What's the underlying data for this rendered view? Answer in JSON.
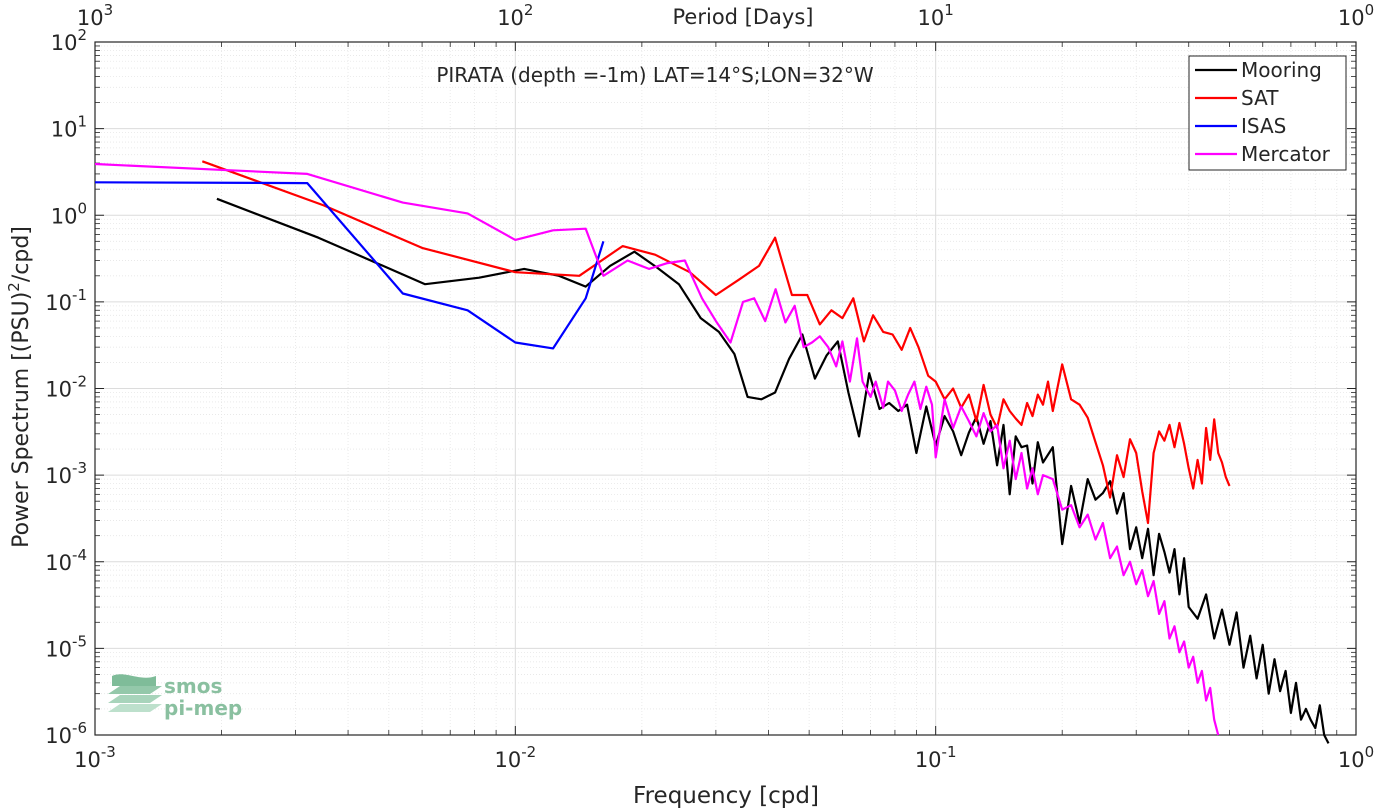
{
  "chart_data": {
    "type": "line",
    "title": "PIRATA (depth =-1m) LAT=14°S;LON=32°W",
    "xlabel": "Frequency [cpd]",
    "ylabel_main": "Power Spectrum [(PSU)",
    "ylabel_sup": "2",
    "ylabel_tail": "/cpd]",
    "top_axis_label": "Period [Days]",
    "x_scale": "log",
    "y_scale": "log",
    "xlim": [
      0.001,
      1
    ],
    "ylim": [
      1e-06,
      100
    ],
    "grid": true,
    "legend_position": "top-right",
    "x_ticks": [
      {
        "value": 0.001,
        "base": "10",
        "exp": "-3"
      },
      {
        "value": 0.01,
        "base": "10",
        "exp": "-2"
      },
      {
        "value": 0.1,
        "base": "10",
        "exp": "-1"
      },
      {
        "value": 1,
        "base": "10",
        "exp": "0"
      }
    ],
    "y_ticks": [
      {
        "value": 100,
        "base": "10",
        "exp": "2"
      },
      {
        "value": 10,
        "base": "10",
        "exp": "1"
      },
      {
        "value": 1,
        "base": "10",
        "exp": "0"
      },
      {
        "value": 0.1,
        "base": "10",
        "exp": "-1"
      },
      {
        "value": 0.01,
        "base": "10",
        "exp": "-2"
      },
      {
        "value": 0.001,
        "base": "10",
        "exp": "-3"
      },
      {
        "value": 0.0001,
        "base": "10",
        "exp": "-4"
      },
      {
        "value": 1e-05,
        "base": "10",
        "exp": "-5"
      },
      {
        "value": 1e-06,
        "base": "10",
        "exp": "-6"
      }
    ],
    "top_ticks": [
      {
        "value": 0.001,
        "base": "10",
        "exp": "3"
      },
      {
        "value": 0.01,
        "base": "10",
        "exp": "2"
      },
      {
        "value": 0.1,
        "base": "10",
        "exp": "1"
      },
      {
        "value": 1,
        "base": "10",
        "exp": "0"
      }
    ],
    "series": [
      {
        "name": "Mooring",
        "color": "#000000",
        "x": [
          0.00195,
          0.0034,
          0.0061,
          0.0082,
          0.0105,
          0.0127,
          0.0147,
          0.0168,
          0.0192,
          0.0217,
          0.0245,
          0.0276,
          0.0305,
          0.0332,
          0.0357,
          0.0385,
          0.0415,
          0.0448,
          0.0482,
          0.0516,
          0.055,
          0.0585,
          0.062,
          0.0657,
          0.0695,
          0.0735,
          0.0775,
          0.0815,
          0.0855,
          0.09,
          0.095,
          0.1,
          0.105,
          0.11,
          0.115,
          0.12,
          0.125,
          0.13,
          0.135,
          0.14,
          0.145,
          0.15,
          0.155,
          0.16,
          0.165,
          0.17,
          0.175,
          0.18,
          0.19,
          0.2,
          0.21,
          0.22,
          0.23,
          0.24,
          0.25,
          0.26,
          0.27,
          0.28,
          0.29,
          0.3,
          0.31,
          0.32,
          0.33,
          0.34,
          0.35,
          0.36,
          0.37,
          0.38,
          0.39,
          0.4,
          0.42,
          0.44,
          0.46,
          0.48,
          0.5,
          0.52,
          0.54,
          0.56,
          0.58,
          0.6,
          0.62,
          0.64,
          0.66,
          0.68,
          0.7,
          0.72,
          0.74,
          0.76,
          0.78,
          0.8,
          0.82,
          0.84,
          0.86
        ],
        "y": [
          1.55,
          0.55,
          0.16,
          0.19,
          0.24,
          0.2,
          0.15,
          0.26,
          0.38,
          0.25,
          0.16,
          0.065,
          0.045,
          0.025,
          0.008,
          0.0075,
          0.009,
          0.022,
          0.042,
          0.013,
          0.024,
          0.035,
          0.009,
          0.0028,
          0.015,
          0.0058,
          0.0068,
          0.0055,
          0.0065,
          0.0018,
          0.0062,
          0.0022,
          0.0048,
          0.0032,
          0.0017,
          0.0031,
          0.0047,
          0.0023,
          0.0042,
          0.0013,
          0.0038,
          0.0006,
          0.0028,
          0.0021,
          0.0022,
          0.0008,
          0.0024,
          0.0014,
          0.0021,
          0.00016,
          0.00075,
          0.00028,
          0.0009,
          0.00052,
          0.00062,
          0.00085,
          0.00036,
          0.00062,
          0.00014,
          0.00025,
          0.00011,
          0.00024,
          7e-05,
          0.00021,
          0.00013,
          7.5e-05,
          0.00014,
          4.2e-05,
          0.00011,
          3e-05,
          2.2e-05,
          4.2e-05,
          1.3e-05,
          2.8e-05,
          1.1e-05,
          2.6e-05,
          6e-06,
          1.4e-05,
          4.5e-06,
          1.1e-05,
          3e-06,
          7.5e-06,
          3.2e-06,
          5.5e-06,
          1.8e-06,
          4e-06,
          1.5e-06,
          2e-06,
          1.5e-06,
          1.2e-06,
          2.2e-06,
          1e-06,
          8e-07
        ]
      },
      {
        "name": "SAT",
        "color": "#ff0000",
        "x": [
          0.0018,
          0.0035,
          0.006,
          0.01,
          0.0142,
          0.018,
          0.0215,
          0.026,
          0.03,
          0.034,
          0.038,
          0.0415,
          0.0455,
          0.0495,
          0.053,
          0.0565,
          0.06,
          0.0637,
          0.0675,
          0.071,
          0.075,
          0.079,
          0.083,
          0.087,
          0.091,
          0.096,
          0.1,
          0.105,
          0.11,
          0.115,
          0.12,
          0.125,
          0.13,
          0.135,
          0.14,
          0.145,
          0.15,
          0.155,
          0.16,
          0.165,
          0.17,
          0.175,
          0.18,
          0.185,
          0.19,
          0.2,
          0.21,
          0.22,
          0.23,
          0.24,
          0.25,
          0.26,
          0.27,
          0.28,
          0.29,
          0.3,
          0.31,
          0.32,
          0.33,
          0.34,
          0.35,
          0.36,
          0.37,
          0.38,
          0.39,
          0.4,
          0.41,
          0.42,
          0.43,
          0.44,
          0.45,
          0.46,
          0.47,
          0.48,
          0.49,
          0.5
        ],
        "y": [
          4.2,
          1.3,
          0.42,
          0.22,
          0.2,
          0.44,
          0.35,
          0.22,
          0.12,
          0.18,
          0.26,
          0.55,
          0.12,
          0.12,
          0.055,
          0.08,
          0.065,
          0.11,
          0.035,
          0.07,
          0.045,
          0.042,
          0.028,
          0.05,
          0.03,
          0.014,
          0.012,
          0.0075,
          0.01,
          0.006,
          0.0085,
          0.0042,
          0.011,
          0.005,
          0.0035,
          0.0075,
          0.0055,
          0.0045,
          0.0038,
          0.0068,
          0.0048,
          0.0085,
          0.0065,
          0.012,
          0.0055,
          0.019,
          0.0075,
          0.0065,
          0.0046,
          0.0024,
          0.0013,
          0.00055,
          0.0017,
          0.00095,
          0.0026,
          0.0018,
          0.00065,
          0.00028,
          0.0018,
          0.0032,
          0.0025,
          0.0038,
          0.0021,
          0.004,
          0.0023,
          0.0012,
          0.0007,
          0.0015,
          0.0008,
          0.0035,
          0.0015,
          0.0044,
          0.0018,
          0.0014,
          0.00095,
          0.00075
        ]
      },
      {
        "name": "ISAS",
        "color": "#0000ff",
        "x": [
          0.001,
          0.0032,
          0.0054,
          0.0077,
          0.01,
          0.0123,
          0.0147,
          0.0162
        ],
        "y": [
          2.4,
          2.35,
          0.125,
          0.08,
          0.034,
          0.029,
          0.11,
          0.5
        ]
      },
      {
        "name": "Mercator",
        "color": "#ff00ff",
        "x": [
          0.001,
          0.0032,
          0.0054,
          0.0077,
          0.01,
          0.0123,
          0.0147,
          0.0162,
          0.0185,
          0.0208,
          0.023,
          0.0253,
          0.0278,
          0.03,
          0.0325,
          0.0348,
          0.037,
          0.0393,
          0.0416,
          0.0439,
          0.0462,
          0.0485,
          0.0508,
          0.053,
          0.0555,
          0.058,
          0.06,
          0.0625,
          0.065,
          0.067,
          0.07,
          0.072,
          0.075,
          0.077,
          0.08,
          0.083,
          0.086,
          0.089,
          0.092,
          0.095,
          0.098,
          0.1,
          0.105,
          0.11,
          0.115,
          0.12,
          0.125,
          0.13,
          0.135,
          0.14,
          0.145,
          0.15,
          0.155,
          0.16,
          0.165,
          0.17,
          0.175,
          0.18,
          0.19,
          0.2,
          0.21,
          0.22,
          0.23,
          0.24,
          0.25,
          0.26,
          0.27,
          0.28,
          0.29,
          0.3,
          0.31,
          0.32,
          0.33,
          0.34,
          0.35,
          0.36,
          0.37,
          0.38,
          0.39,
          0.4,
          0.41,
          0.42,
          0.43,
          0.44,
          0.45,
          0.46,
          0.47
        ],
        "y": [
          3.9,
          3.0,
          1.4,
          1.05,
          0.52,
          0.67,
          0.7,
          0.2,
          0.3,
          0.24,
          0.28,
          0.3,
          0.11,
          0.06,
          0.034,
          0.1,
          0.11,
          0.06,
          0.14,
          0.058,
          0.09,
          0.03,
          0.034,
          0.04,
          0.03,
          0.018,
          0.035,
          0.012,
          0.038,
          0.012,
          0.008,
          0.012,
          0.006,
          0.012,
          0.0095,
          0.0055,
          0.0085,
          0.012,
          0.0058,
          0.0105,
          0.0065,
          0.0016,
          0.0075,
          0.0035,
          0.0062,
          0.0042,
          0.0028,
          0.0052,
          0.0032,
          0.0038,
          0.0012,
          0.0025,
          0.0009,
          0.0018,
          0.0007,
          0.0012,
          0.0006,
          0.001,
          0.0009,
          0.0004,
          0.00045,
          0.00025,
          0.00035,
          0.00018,
          0.00028,
          0.00011,
          0.00015,
          7e-05,
          0.0001,
          5.5e-05,
          8e-05,
          4e-05,
          6e-05,
          2.5e-05,
          3.5e-05,
          1.3e-05,
          1.8e-05,
          9e-06,
          1.2e-05,
          6e-06,
          8e-06,
          4e-06,
          5.5e-06,
          2.5e-06,
          3.5e-06,
          1.5e-06,
          1e-06
        ]
      }
    ]
  },
  "logo": {
    "line1": "smos",
    "line2": "pi-mep",
    "color": "#8ac0a0"
  }
}
